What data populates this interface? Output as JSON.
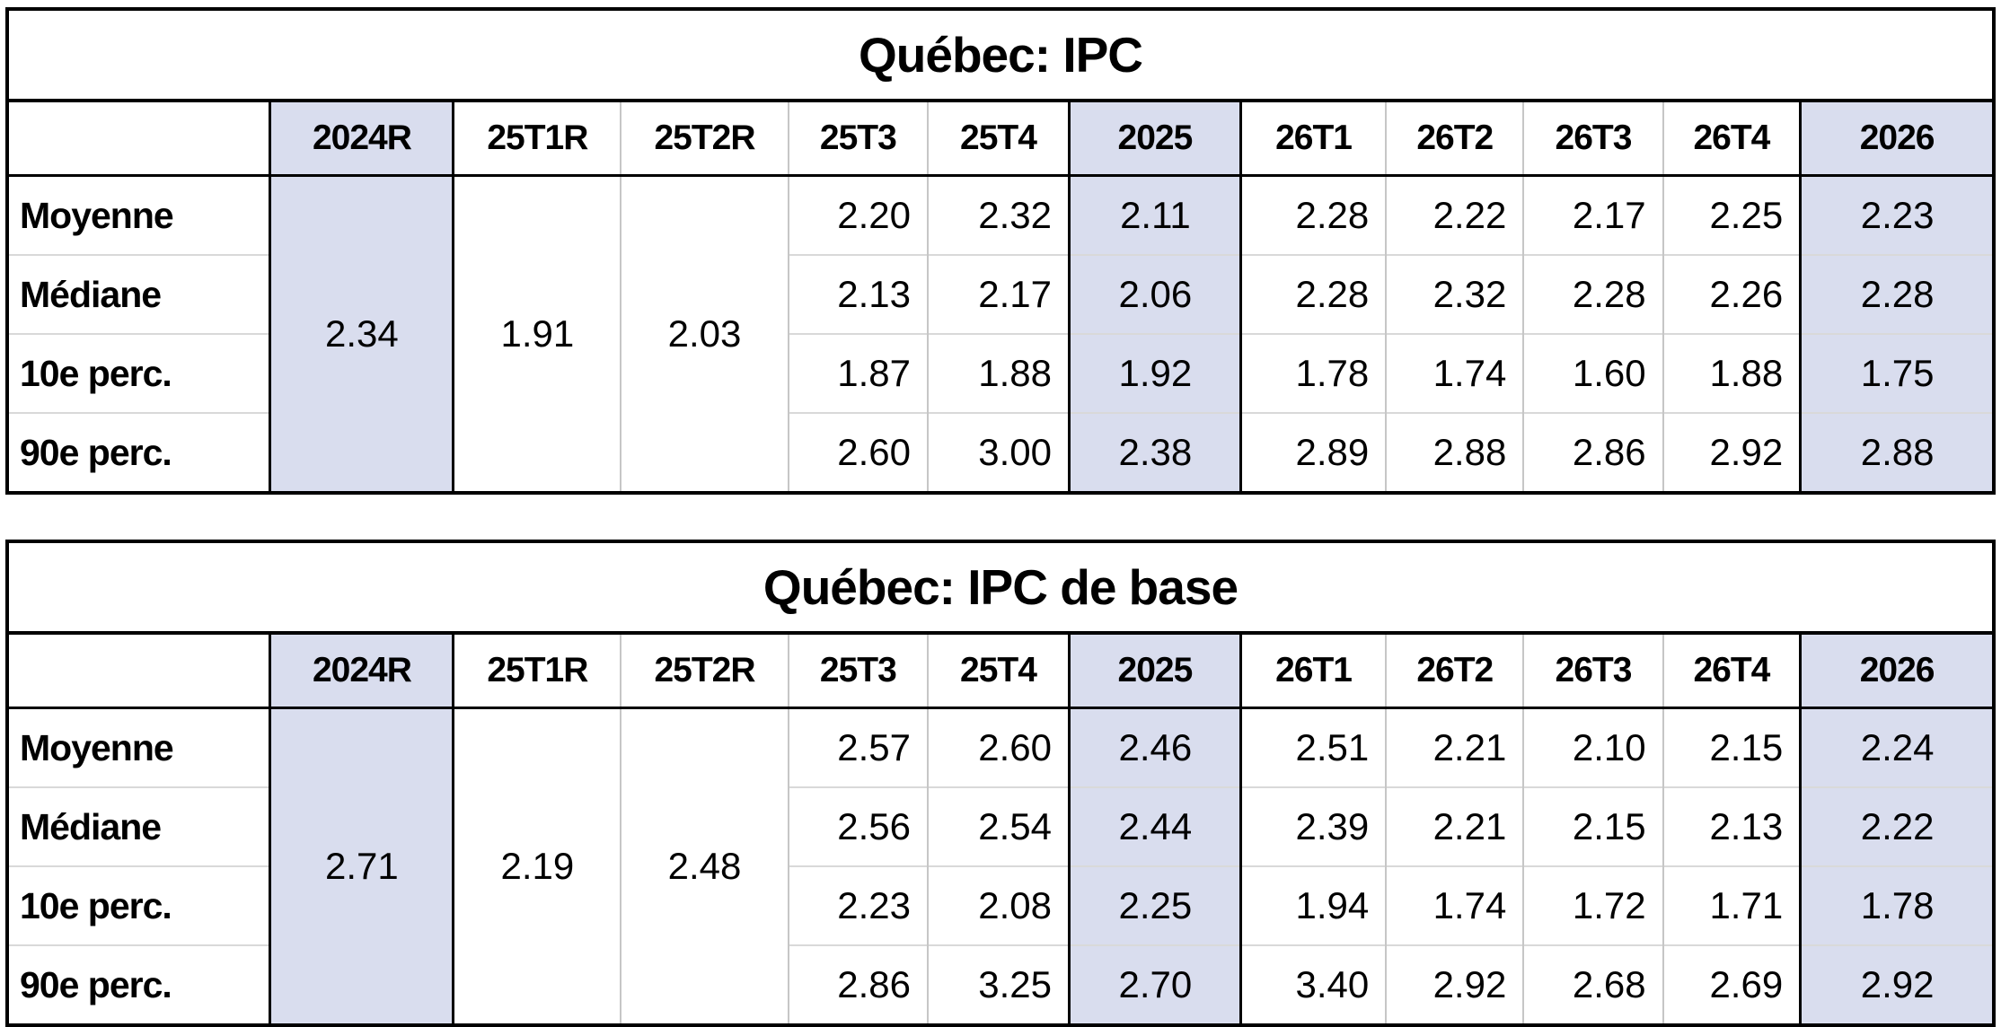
{
  "colors": {
    "highlight_fill": "#d9ddee",
    "grid_line": "#c6c6c6",
    "table_border": "#000000"
  },
  "chart_data": [
    {
      "type": "table",
      "title": "Québec: IPC",
      "columns": [
        "2024R",
        "25T1R",
        "25T2R",
        "25T3",
        "25T4",
        "2025",
        "26T1",
        "26T2",
        "26T3",
        "26T4",
        "2026"
      ],
      "merged_columns": [
        "2024R",
        "25T1R",
        "25T2R"
      ],
      "merged_values": [
        "2.34",
        "1.91",
        "2.03"
      ],
      "highlight_columns": [
        "2024R",
        "2025",
        "2026"
      ],
      "rows": [
        {
          "label": "Moyenne",
          "values": [
            "2.20",
            "2.32",
            "2.11",
            "2.28",
            "2.22",
            "2.17",
            "2.25",
            "2.23"
          ]
        },
        {
          "label": "Médiane",
          "values": [
            "2.13",
            "2.17",
            "2.06",
            "2.28",
            "2.32",
            "2.28",
            "2.26",
            "2.28"
          ]
        },
        {
          "label": "10e perc.",
          "values": [
            "1.87",
            "1.88",
            "1.92",
            "1.78",
            "1.74",
            "1.60",
            "1.88",
            "1.75"
          ]
        },
        {
          "label": "90e perc.",
          "values": [
            "2.60",
            "3.00",
            "2.38",
            "2.89",
            "2.88",
            "2.86",
            "2.92",
            "2.88"
          ]
        }
      ]
    },
    {
      "type": "table",
      "title": "Québec: IPC de base",
      "columns": [
        "2024R",
        "25T1R",
        "25T2R",
        "25T3",
        "25T4",
        "2025",
        "26T1",
        "26T2",
        "26T3",
        "26T4",
        "2026"
      ],
      "merged_columns": [
        "2024R",
        "25T1R",
        "25T2R"
      ],
      "merged_values": [
        "2.71",
        "2.19",
        "2.48"
      ],
      "highlight_columns": [
        "2024R",
        "2025",
        "2026"
      ],
      "rows": [
        {
          "label": "Moyenne",
          "values": [
            "2.57",
            "2.60",
            "2.46",
            "2.51",
            "2.21",
            "2.10",
            "2.15",
            "2.24"
          ]
        },
        {
          "label": "Médiane",
          "values": [
            "2.56",
            "2.54",
            "2.44",
            "2.39",
            "2.21",
            "2.15",
            "2.13",
            "2.22"
          ]
        },
        {
          "label": "10e perc.",
          "values": [
            "2.23",
            "2.08",
            "2.25",
            "1.94",
            "1.74",
            "1.72",
            "1.71",
            "1.78"
          ]
        },
        {
          "label": "90e perc.",
          "values": [
            "2.86",
            "3.25",
            "2.70",
            "3.40",
            "2.92",
            "2.68",
            "2.69",
            "2.92"
          ]
        }
      ]
    }
  ]
}
